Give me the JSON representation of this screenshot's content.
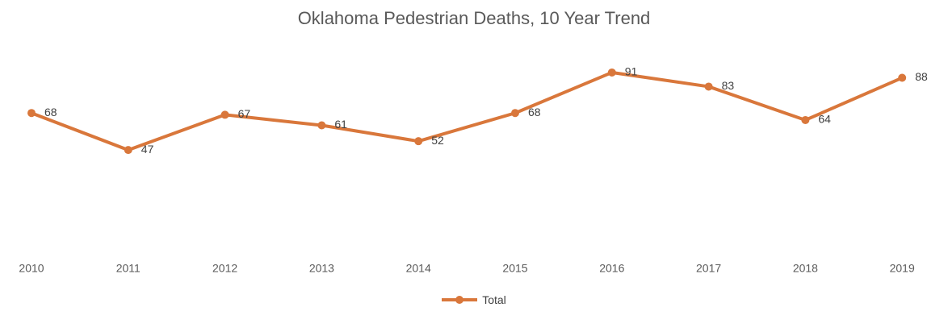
{
  "chart_data": {
    "type": "line",
    "title": "Oklahoma Pedestrian Deaths, 10 Year Trend",
    "xlabel": "",
    "ylabel": "",
    "categories": [
      "2010",
      "2011",
      "2012",
      "2013",
      "2014",
      "2015",
      "2016",
      "2017",
      "2018",
      "2019"
    ],
    "series": [
      {
        "name": "Total",
        "values": [
          68,
          47,
          67,
          61,
          52,
          68,
          91,
          83,
          64,
          88
        ],
        "color": "#D9773B"
      }
    ],
    "ylim": [
      0,
      100
    ],
    "grid": false,
    "legend_position": "bottom",
    "data_labels": true
  }
}
